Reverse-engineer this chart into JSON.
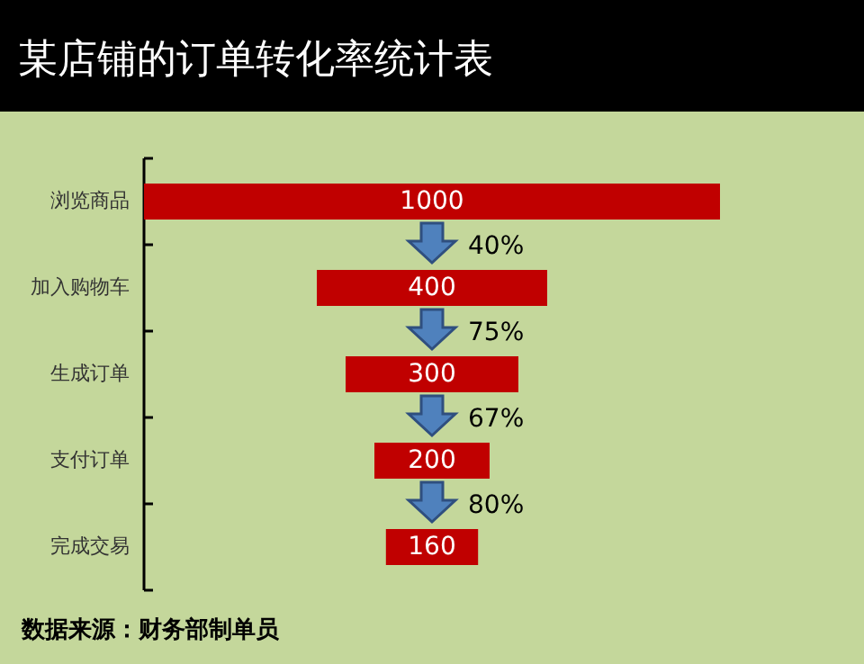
{
  "chart_data": {
    "type": "other",
    "title": "某店铺的订单转化率统计表",
    "categories": [
      "浏览商品",
      "加入购物车",
      "生成订单",
      "支付订单",
      "完成交易"
    ],
    "values": [
      1000,
      400,
      300,
      200,
      160
    ],
    "color": "#c00000",
    "data_labels": true,
    "annotations": [
      "40%",
      "75%",
      "67%",
      "80%",
      "数据来源：财务部制单员"
    ]
  }
}
